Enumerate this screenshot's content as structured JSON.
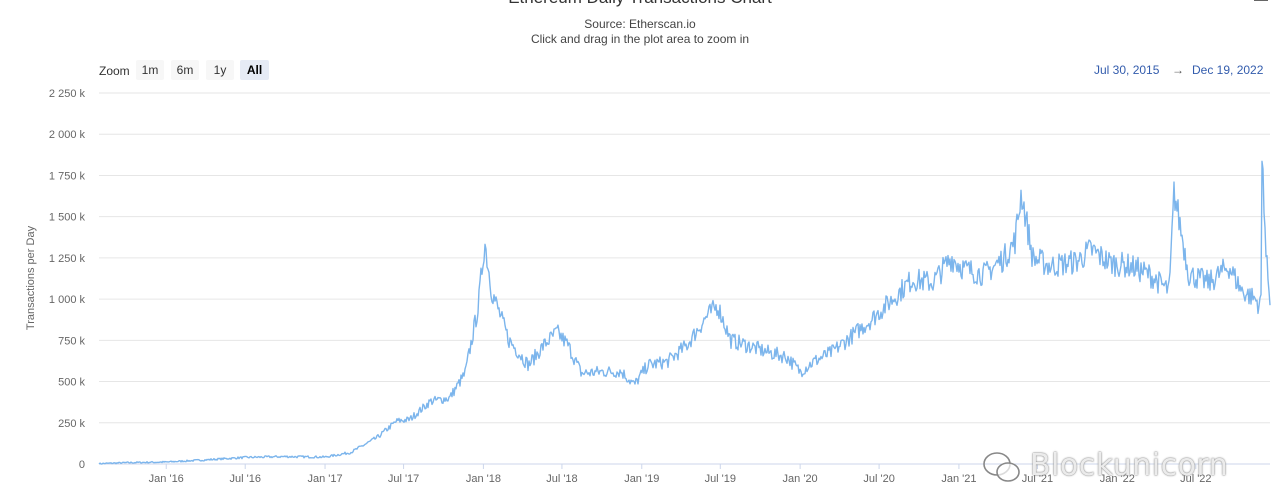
{
  "header": {
    "title": "Ethereum Daily Transactions Chart",
    "source": "Source: Etherscan.io",
    "hint": "Click and drag in the plot area to zoom in"
  },
  "zoom": {
    "label": "Zoom",
    "buttons": [
      "1m",
      "6m",
      "1y",
      "All"
    ],
    "active": "All"
  },
  "range": {
    "from": "Jul 30, 2015",
    "arrow": "→",
    "to": "Dec 19, 2022"
  },
  "watermark": "Blockunicorn",
  "colors": {
    "line": "#7cb5ec",
    "grid": "#e6e6e6",
    "range_text": "#335cad"
  },
  "chart_data": {
    "type": "line",
    "title": "Ethereum Daily Transactions Chart",
    "ylabel": "Transactions per Day",
    "xlabel": "",
    "ylim": [
      0,
      2250000
    ],
    "y_ticks": [
      "0",
      "250 k",
      "500 k",
      "750 k",
      "1 000 k",
      "1 250 k",
      "1 500 k",
      "1 750 k",
      "2 000 k",
      "2 250 k"
    ],
    "x_ticks": [
      "Jan '16",
      "Jul '16",
      "Jan '17",
      "Jul '17",
      "Jan '18",
      "Jul '18",
      "Jan '19",
      "Jul '19",
      "Jan '20",
      "Jul '20",
      "Jan '21",
      "Jul '21",
      "Jan '22",
      "Jul '22"
    ],
    "grid": true,
    "legend": "none",
    "series": [
      {
        "x": [
          "2015-07-30",
          "2015-10-01",
          "2016-01-01",
          "2016-04-01",
          "2016-07-01",
          "2016-10-01",
          "2017-01-01",
          "2017-03-01",
          "2017-05-01",
          "2017-06-15",
          "2017-07-15",
          "2017-09-01",
          "2017-10-15",
          "2017-11-20",
          "2017-12-20",
          "2018-01-04",
          "2018-01-20",
          "2018-03-01",
          "2018-04-15",
          "2018-05-20",
          "2018-06-20",
          "2018-07-15",
          "2018-08-15",
          "2018-10-01",
          "2018-11-15",
          "2018-12-15",
          "2019-01-15",
          "2019-03-01",
          "2019-04-15",
          "2019-06-01",
          "2019-06-25",
          "2019-07-25",
          "2019-09-01",
          "2019-10-15",
          "2019-12-01",
          "2020-01-01",
          "2020-02-01",
          "2020-03-15",
          "2020-05-01",
          "2020-06-15",
          "2020-08-01",
          "2020-09-15",
          "2020-11-01",
          "2020-12-15",
          "2021-01-15",
          "2021-03-01",
          "2021-04-15",
          "2021-05-10",
          "2021-05-25",
          "2021-06-20",
          "2021-08-01",
          "2021-10-01",
          "2021-11-01",
          "2021-12-15",
          "2022-02-01",
          "2022-03-15",
          "2022-05-01",
          "2022-05-12",
          "2022-06-15",
          "2022-08-01",
          "2022-09-15",
          "2022-10-15",
          "2022-11-15",
          "2022-11-28",
          "2022-12-01",
          "2022-12-10",
          "2022-12-19"
        ],
        "values": [
          2000,
          8000,
          12000,
          25000,
          40000,
          45000,
          42000,
          70000,
          160000,
          260000,
          270000,
          380000,
          400000,
          550000,
          950000,
          1350000,
          1050000,
          750000,
          600000,
          720000,
          800000,
          720000,
          550000,
          560000,
          560000,
          480000,
          600000,
          620000,
          720000,
          900000,
          960000,
          750000,
          720000,
          680000,
          650000,
          560000,
          620000,
          680000,
          780000,
          880000,
          1000000,
          1120000,
          1100000,
          1250000,
          1180000,
          1150000,
          1250000,
          1350000,
          1650000,
          1250000,
          1200000,
          1230000,
          1300000,
          1220000,
          1200000,
          1150000,
          1050000,
          1650000,
          1150000,
          1100000,
          1200000,
          1050000,
          1000000,
          950000,
          1930000,
          1250000,
          1000000
        ]
      }
    ]
  }
}
